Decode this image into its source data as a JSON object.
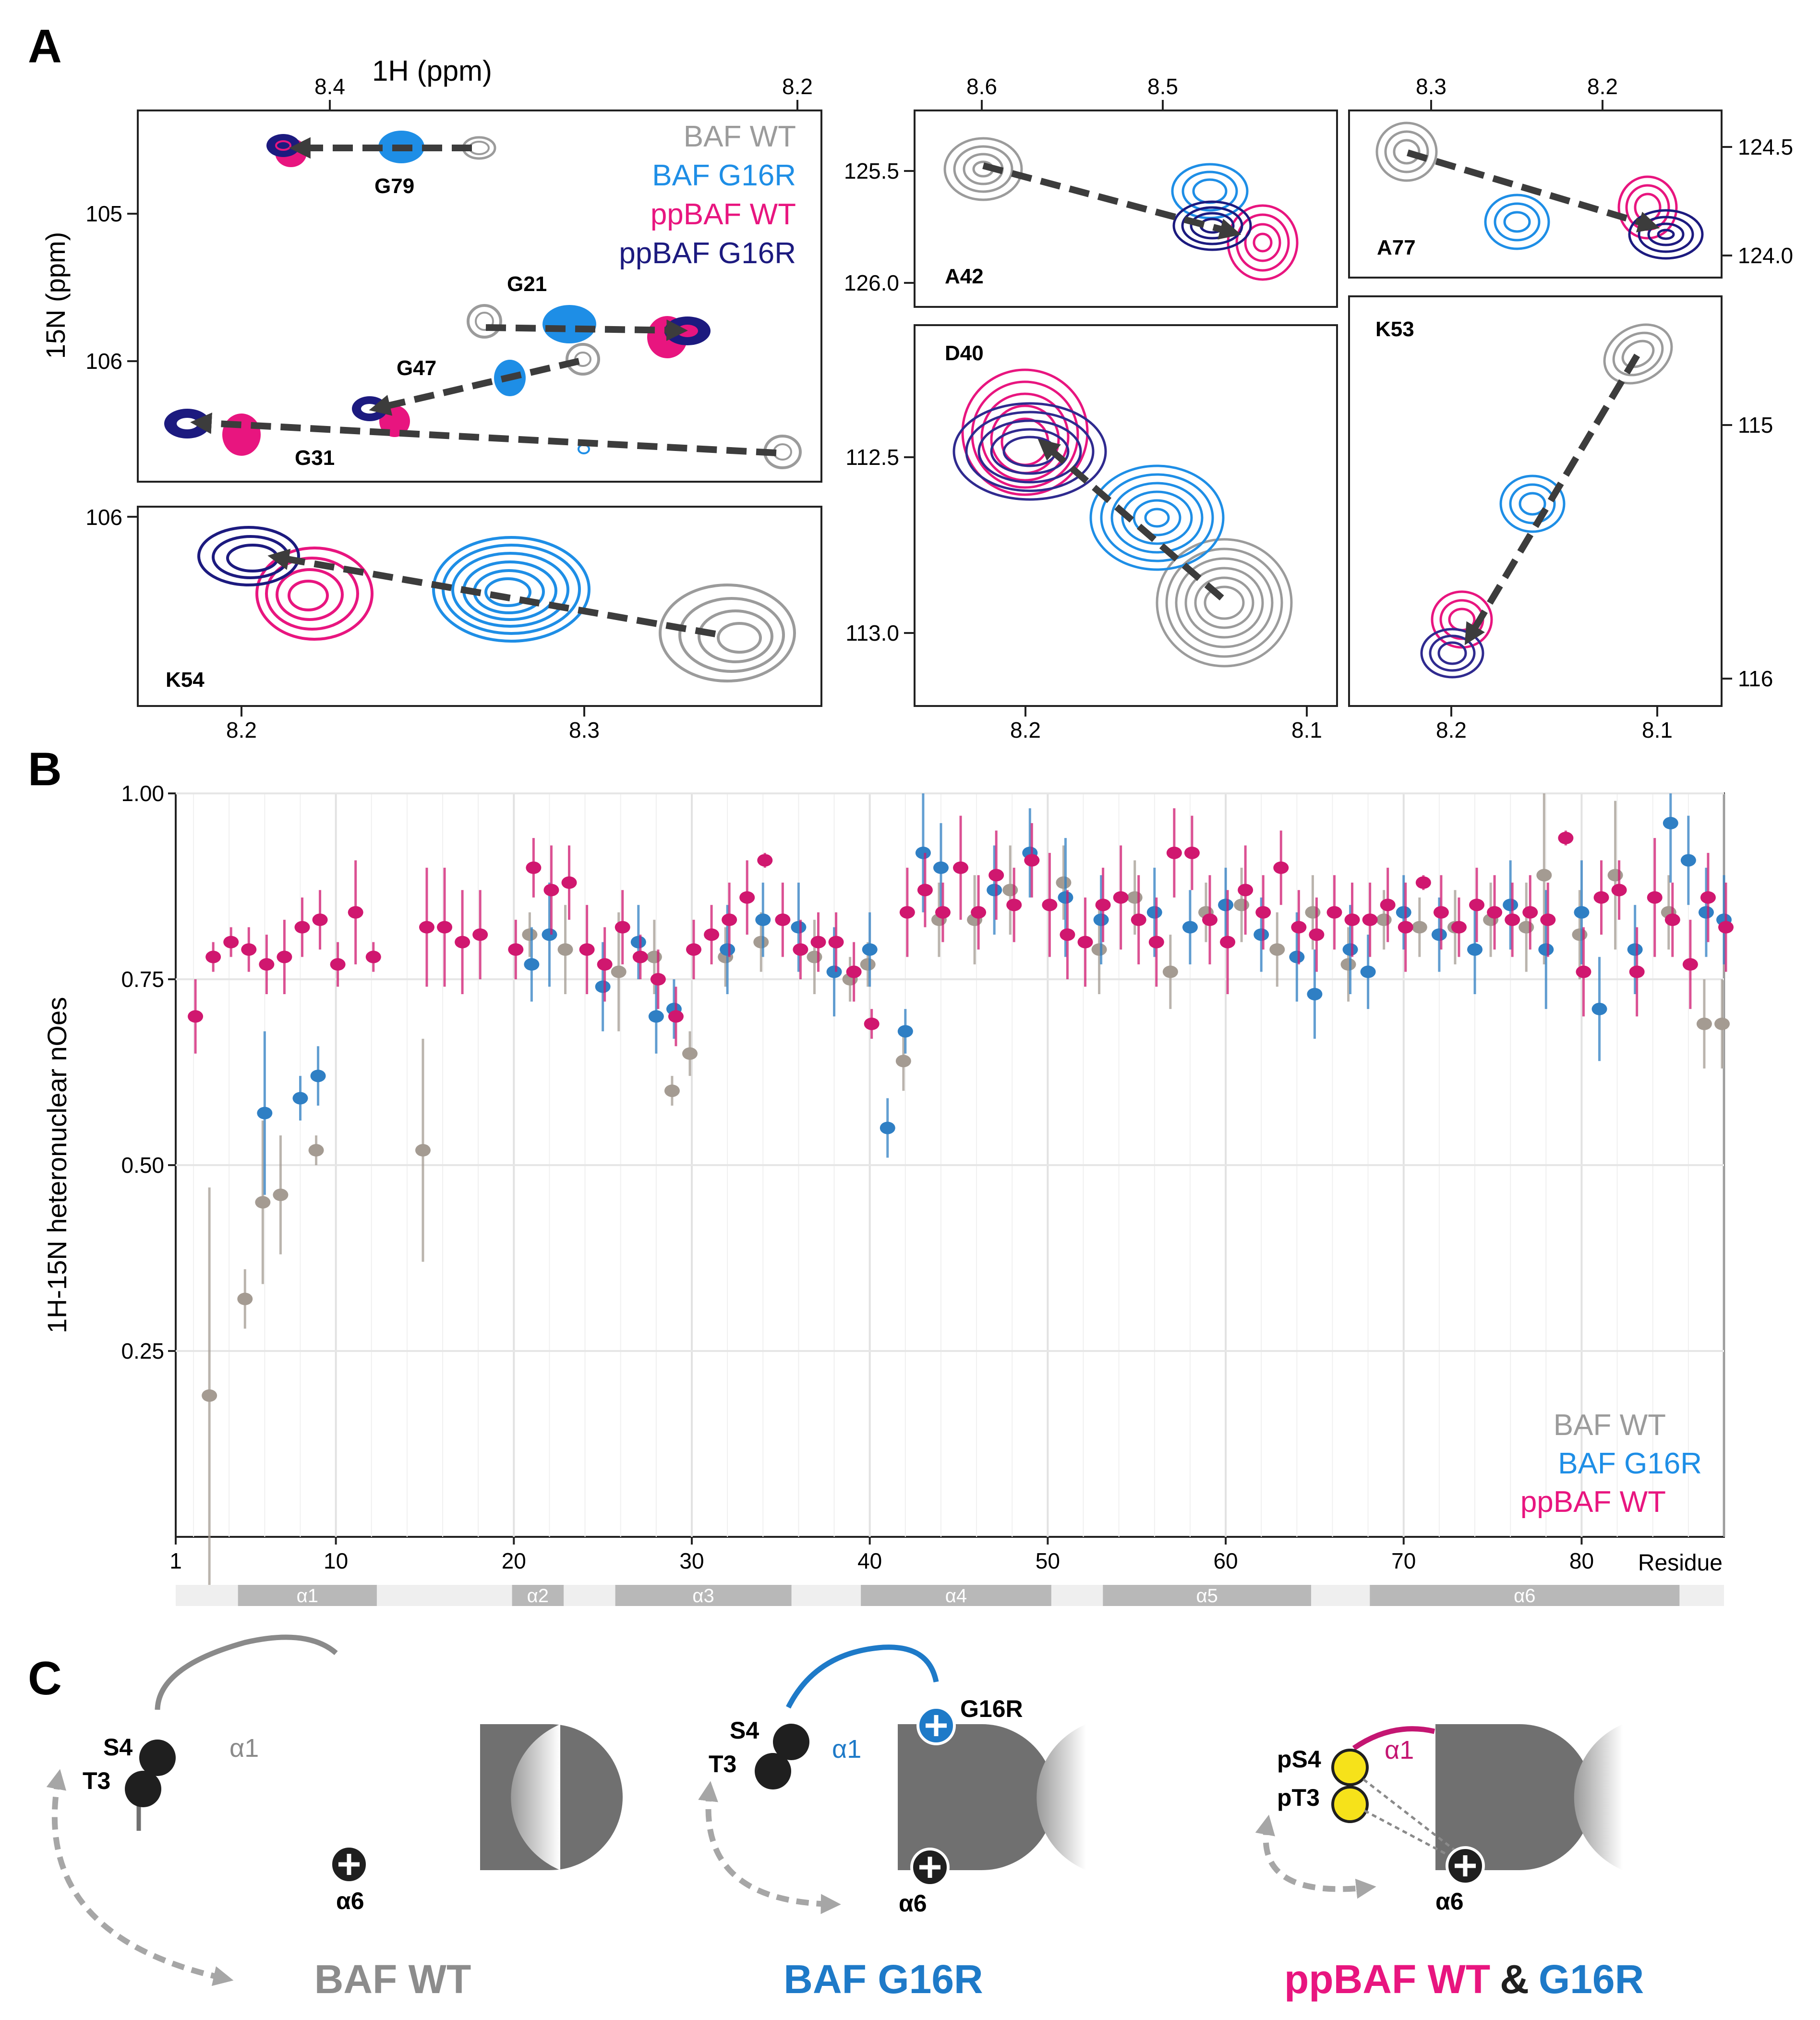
{
  "panels": {
    "A": "A",
    "B": "B",
    "C": "C"
  },
  "colors": {
    "wt": "#9b9b9b",
    "g16r": "#1e8ee6",
    "ppwt": "#e8157f",
    "ppg16r": "#1c1a7f",
    "dark": "#3c3c3c",
    "alpha": "#b8b8b8",
    "yellow": "#f6e21a"
  },
  "panelA": {
    "top_axis_title": "1H (ppm)",
    "y_axis_title": "15N (ppm)",
    "legend": [
      "BAF WT",
      "BAF G16R",
      "ppBAF WT",
      "ppBAF G16R"
    ],
    "main": {
      "top_ticks": [
        "8.4",
        "8.2"
      ],
      "y_ticks": [
        "105",
        "106"
      ],
      "labels": [
        "G79",
        "G21",
        "G47",
        "G31"
      ]
    },
    "k54": {
      "label": "K54",
      "y_ticks": [
        "106"
      ],
      "x_ticks": [
        "8.2",
        "8.3"
      ]
    },
    "a42": {
      "label": "A42",
      "top_ticks": [
        "8.6",
        "8.5"
      ],
      "y_ticks": [
        "125.5",
        "126.0"
      ]
    },
    "a77": {
      "label": "A77",
      "top_ticks": [
        "8.3",
        "8.2"
      ],
      "y_ticks": [
        "124.5",
        "124.0"
      ]
    },
    "d40": {
      "label": "D40",
      "y_ticks": [
        "112.5",
        "113.0"
      ],
      "x_ticks": [
        "8.2",
        "8.1"
      ]
    },
    "k53": {
      "label": "K53",
      "y_ticks": [
        "115",
        "116"
      ],
      "x_ticks": [
        "8.2",
        "8.1"
      ]
    }
  },
  "chart_data": {
    "type": "scatter",
    "title": "",
    "xlabel": "Residue",
    "ylabel": "1H-15N heteronuclear nOes",
    "xlim": [
      1,
      88
    ],
    "ylim": [
      0,
      1.0
    ],
    "x_ticks": [
      "1",
      "10",
      "20",
      "30",
      "40",
      "50",
      "60",
      "70",
      "80"
    ],
    "y_ticks": [
      "0.25",
      "0.50",
      "0.75",
      "1.00"
    ],
    "legend": [
      "BAF WT",
      "BAF G16R",
      "ppBAF WT"
    ],
    "series": [
      {
        "name": "BAF WT",
        "points": [
          [
            3,
            0.19,
            0.28
          ],
          [
            5,
            0.32,
            0.04
          ],
          [
            6,
            0.45,
            0.11
          ],
          [
            7,
            0.46,
            0.08
          ],
          [
            9,
            0.52,
            0.02
          ],
          [
            15,
            0.52,
            0.15
          ],
          [
            21,
            0.81,
            0.03
          ],
          [
            23,
            0.79,
            0.06
          ],
          [
            26,
            0.76,
            0.08
          ],
          [
            28,
            0.78,
            0.05
          ],
          [
            29,
            0.6,
            0.02
          ],
          [
            30,
            0.65,
            0.03
          ],
          [
            32,
            0.78,
            0.04
          ],
          [
            34,
            0.8,
            0.04
          ],
          [
            37,
            0.78,
            0.05
          ],
          [
            39,
            0.75,
            0.03
          ],
          [
            40,
            0.77,
            0.03
          ],
          [
            42,
            0.64,
            0.04
          ],
          [
            44,
            0.83,
            0.05
          ],
          [
            46,
            0.83,
            0.06
          ],
          [
            48,
            0.87,
            0.06
          ],
          [
            51,
            0.88,
            0.05
          ],
          [
            53,
            0.79,
            0.06
          ],
          [
            55,
            0.86,
            0.05
          ],
          [
            57,
            0.76,
            0.05
          ],
          [
            59,
            0.84,
            0.04
          ],
          [
            61,
            0.85,
            0.05
          ],
          [
            63,
            0.79,
            0.05
          ],
          [
            65,
            0.84,
            0.05
          ],
          [
            67,
            0.77,
            0.05
          ],
          [
            69,
            0.83,
            0.04
          ],
          [
            71,
            0.82,
            0.04
          ],
          [
            73,
            0.82,
            0.05
          ],
          [
            75,
            0.83,
            0.05
          ],
          [
            77,
            0.82,
            0.06
          ],
          [
            78,
            0.89,
            0.12
          ],
          [
            80,
            0.81,
            0.06
          ],
          [
            82,
            0.89,
            0.1
          ],
          [
            85,
            0.84,
            0.05
          ],
          [
            87,
            0.69,
            0.06
          ],
          [
            88,
            0.69,
            0.06
          ]
        ]
      },
      {
        "name": "BAF G16R",
        "points": [
          [
            6,
            0.57,
            0.11
          ],
          [
            8,
            0.59,
            0.03
          ],
          [
            9,
            0.62,
            0.04
          ],
          [
            21,
            0.77,
            0.05
          ],
          [
            22,
            0.81,
            0.07
          ],
          [
            25,
            0.74,
            0.06
          ],
          [
            27,
            0.8,
            0.05
          ],
          [
            28,
            0.7,
            0.05
          ],
          [
            29,
            0.71,
            0.04
          ],
          [
            32,
            0.79,
            0.06
          ],
          [
            34,
            0.83,
            0.05
          ],
          [
            36,
            0.82,
            0.06
          ],
          [
            38,
            0.76,
            0.06
          ],
          [
            40,
            0.79,
            0.05
          ],
          [
            41,
            0.55,
            0.04
          ],
          [
            42,
            0.68,
            0.03
          ],
          [
            43,
            0.92,
            0.08
          ],
          [
            44,
            0.9,
            0.06
          ],
          [
            47,
            0.87,
            0.06
          ],
          [
            49,
            0.92,
            0.06
          ],
          [
            51,
            0.86,
            0.08
          ],
          [
            53,
            0.83,
            0.06
          ],
          [
            56,
            0.84,
            0.06
          ],
          [
            58,
            0.82,
            0.05
          ],
          [
            60,
            0.85,
            0.05
          ],
          [
            62,
            0.81,
            0.05
          ],
          [
            64,
            0.78,
            0.06
          ],
          [
            65,
            0.73,
            0.06
          ],
          [
            67,
            0.79,
            0.06
          ],
          [
            68,
            0.76,
            0.05
          ],
          [
            70,
            0.84,
            0.05
          ],
          [
            72,
            0.81,
            0.05
          ],
          [
            74,
            0.79,
            0.06
          ],
          [
            76,
            0.85,
            0.06
          ],
          [
            78,
            0.79,
            0.08
          ],
          [
            80,
            0.84,
            0.07
          ],
          [
            81,
            0.71,
            0.07
          ],
          [
            83,
            0.79,
            0.06
          ],
          [
            85,
            0.96,
            0.08
          ],
          [
            86,
            0.91,
            0.06
          ],
          [
            87,
            0.84,
            0.06
          ],
          [
            88,
            0.83,
            0.06
          ]
        ]
      },
      {
        "name": "ppBAF WT",
        "points": [
          [
            2,
            0.7,
            0.05
          ],
          [
            3,
            0.78,
            0.02
          ],
          [
            4,
            0.8,
            0.02
          ],
          [
            5,
            0.79,
            0.03
          ],
          [
            6,
            0.77,
            0.04
          ],
          [
            7,
            0.78,
            0.05
          ],
          [
            8,
            0.82,
            0.04
          ],
          [
            9,
            0.83,
            0.04
          ],
          [
            10,
            0.77,
            0.03
          ],
          [
            11,
            0.84,
            0.07
          ],
          [
            12,
            0.78,
            0.02
          ],
          [
            15,
            0.82,
            0.08
          ],
          [
            16,
            0.82,
            0.08
          ],
          [
            17,
            0.8,
            0.07
          ],
          [
            18,
            0.81,
            0.06
          ],
          [
            20,
            0.79,
            0.04
          ],
          [
            21,
            0.9,
            0.04
          ],
          [
            22,
            0.87,
            0.06
          ],
          [
            23,
            0.88,
            0.05
          ],
          [
            24,
            0.79,
            0.06
          ],
          [
            25,
            0.77,
            0.05
          ],
          [
            26,
            0.82,
            0.05
          ],
          [
            27,
            0.78,
            0.03
          ],
          [
            28,
            0.75,
            0.04
          ],
          [
            29,
            0.7,
            0.04
          ],
          [
            30,
            0.79,
            0.04
          ],
          [
            31,
            0.81,
            0.04
          ],
          [
            32,
            0.83,
            0.05
          ],
          [
            33,
            0.86,
            0.05
          ],
          [
            34,
            0.91,
            0.01
          ],
          [
            35,
            0.83,
            0.05
          ],
          [
            36,
            0.79,
            0.04
          ],
          [
            37,
            0.8,
            0.04
          ],
          [
            38,
            0.8,
            0.04
          ],
          [
            39,
            0.76,
            0.04
          ],
          [
            40,
            0.69,
            0.02
          ],
          [
            42,
            0.84,
            0.06
          ],
          [
            43,
            0.87,
            0.05
          ],
          [
            44,
            0.84,
            0.04
          ],
          [
            45,
            0.9,
            0.07
          ],
          [
            46,
            0.84,
            0.05
          ],
          [
            47,
            0.89,
            0.06
          ],
          [
            48,
            0.85,
            0.05
          ],
          [
            49,
            0.91,
            0.05
          ],
          [
            50,
            0.85,
            0.07
          ],
          [
            51,
            0.81,
            0.06
          ],
          [
            52,
            0.8,
            0.06
          ],
          [
            53,
            0.85,
            0.05
          ],
          [
            54,
            0.86,
            0.07
          ],
          [
            55,
            0.83,
            0.06
          ],
          [
            56,
            0.8,
            0.06
          ],
          [
            57,
            0.92,
            0.06
          ],
          [
            58,
            0.92,
            0.05
          ],
          [
            59,
            0.83,
            0.06
          ],
          [
            60,
            0.8,
            0.07
          ],
          [
            61,
            0.87,
            0.06
          ],
          [
            62,
            0.84,
            0.05
          ],
          [
            63,
            0.9,
            0.05
          ],
          [
            64,
            0.82,
            0.05
          ],
          [
            65,
            0.81,
            0.05
          ],
          [
            66,
            0.84,
            0.05
          ],
          [
            67,
            0.83,
            0.05
          ],
          [
            68,
            0.83,
            0.05
          ],
          [
            69,
            0.85,
            0.05
          ],
          [
            70,
            0.82,
            0.06
          ],
          [
            71,
            0.88,
            0.01
          ],
          [
            72,
            0.84,
            0.05
          ],
          [
            73,
            0.82,
            0.04
          ],
          [
            74,
            0.85,
            0.05
          ],
          [
            75,
            0.84,
            0.05
          ],
          [
            76,
            0.83,
            0.05
          ],
          [
            77,
            0.84,
            0.05
          ],
          [
            78,
            0.83,
            0.05
          ],
          [
            79,
            0.94,
            0.01
          ],
          [
            80,
            0.76,
            0.06
          ],
          [
            81,
            0.86,
            0.05
          ],
          [
            82,
            0.87,
            0.04
          ],
          [
            83,
            0.76,
            0.06
          ],
          [
            84,
            0.86,
            0.08
          ],
          [
            85,
            0.83,
            0.05
          ],
          [
            86,
            0.77,
            0.06
          ],
          [
            87,
            0.86,
            0.06
          ],
          [
            88,
            0.82,
            0.06
          ]
        ]
      }
    ],
    "helices": [
      {
        "label": "α1",
        "from": 4.5,
        "to": 12.3
      },
      {
        "label": "α2",
        "from": 19.9,
        "to": 22.8
      },
      {
        "label": "α3",
        "from": 25.7,
        "to": 35.6
      },
      {
        "label": "α4",
        "from": 39.5,
        "to": 50.2
      },
      {
        "label": "α5",
        "from": 53.1,
        "to": 64.8
      },
      {
        "label": "α6",
        "from": 68.1,
        "to": 85.5
      }
    ]
  },
  "panelC": {
    "wt": {
      "s4": "S4",
      "t3": "T3",
      "alpha1": "α1",
      "alpha6": "α6",
      "title": "BAF WT"
    },
    "g16r": {
      "s4": "S4",
      "t3": "T3",
      "alpha1": "α1",
      "alpha6": "α6",
      "mut": "G16R",
      "title": "BAF G16R"
    },
    "pp": {
      "ps4": "pS4",
      "pt3": "pT3",
      "alpha1": "α1",
      "alpha6": "α6",
      "title_a": "ppBAF WT",
      "title_amp": "&",
      "title_b": "G16R"
    }
  }
}
